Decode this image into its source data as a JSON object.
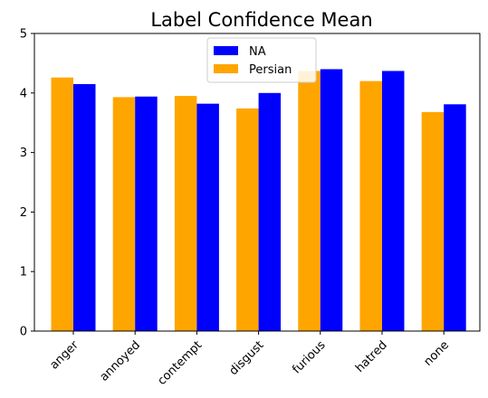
{
  "chart_data": {
    "type": "bar",
    "title": "Label Confidence Mean",
    "xlabel": "",
    "ylabel": "",
    "categories": [
      "anger",
      "annoyed",
      "contempt",
      "disgust",
      "furious",
      "hatred",
      "none"
    ],
    "series": [
      {
        "name": "Persian",
        "color": "#FFA500",
        "values": [
          4.26,
          3.93,
          3.95,
          3.74,
          4.37,
          4.2,
          3.68
        ]
      },
      {
        "name": "NA",
        "color": "#0000FF",
        "values": [
          4.15,
          3.94,
          3.82,
          4.0,
          4.4,
          4.37,
          3.81
        ]
      }
    ],
    "ylim": [
      0,
      5
    ],
    "yticks": [
      0,
      1,
      2,
      3,
      4,
      5
    ],
    "legend": {
      "placement": "top-center",
      "entries": [
        {
          "label": "NA",
          "color": "#0000FF"
        },
        {
          "label": "Persian",
          "color": "#FFA500"
        }
      ]
    },
    "grid": false
  }
}
